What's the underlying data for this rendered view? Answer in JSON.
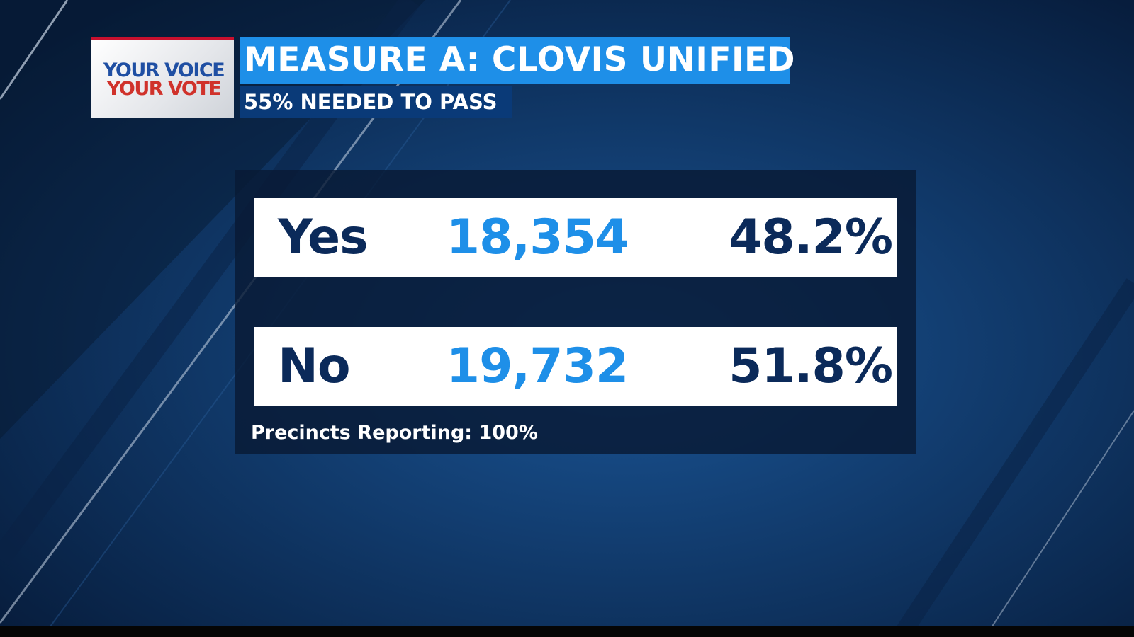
{
  "logo": {
    "line1": "YOUR VOICE",
    "line2": "YOUR VOTE"
  },
  "header": {
    "title": "MEASURE A: CLOVIS UNIFIED",
    "subtitle": "55% NEEDED TO PASS"
  },
  "table": {
    "rows": [
      [
        "Yes",
        "18,354",
        "48.2%"
      ],
      [
        "No",
        "19,732",
        "51.8%"
      ]
    ]
  },
  "footer": "Precincts Reporting: 100%"
}
